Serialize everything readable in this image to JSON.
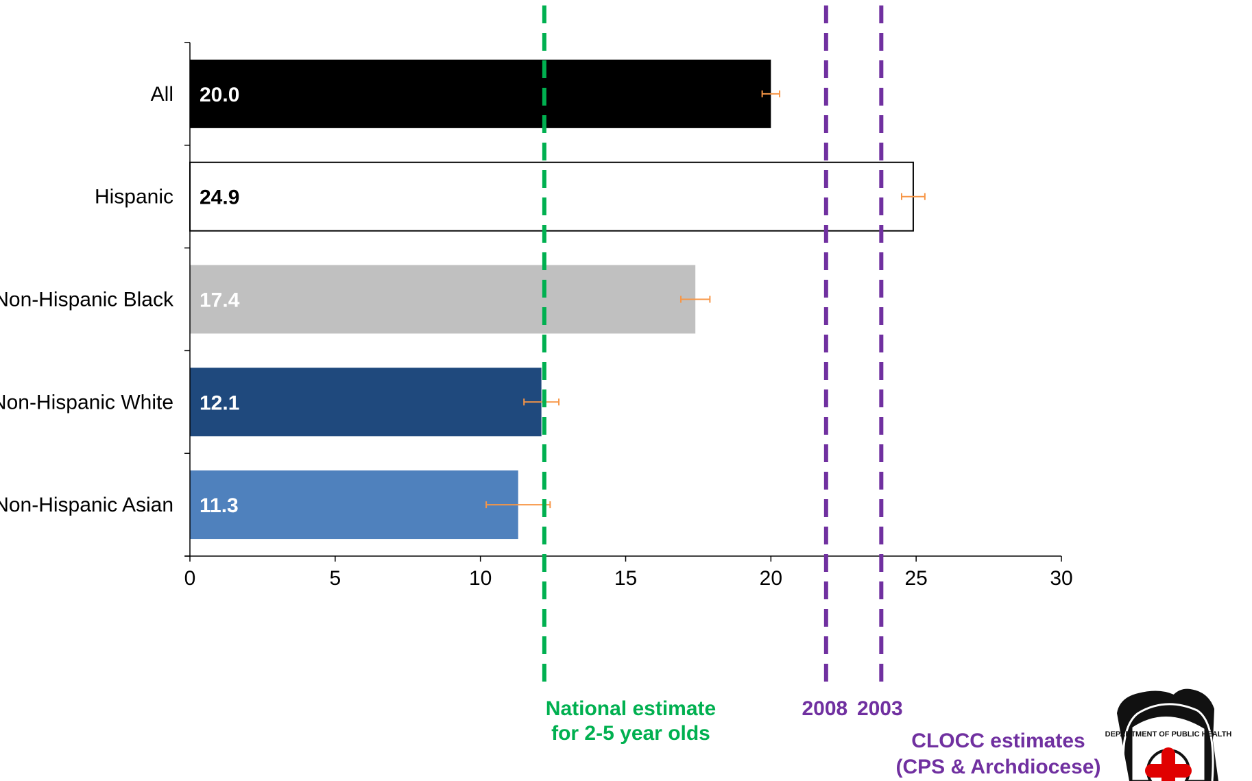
{
  "chart_data": {
    "type": "bar",
    "orientation": "horizontal",
    "categories": [
      "All",
      "Hispanic",
      "Non-Hispanic Black",
      "Non-Hispanic White",
      "Non-Hispanic Asian"
    ],
    "values": [
      20.0,
      24.9,
      17.4,
      12.1,
      11.3
    ],
    "value_labels": [
      "20.0",
      "24.9",
      "17.4",
      "12.1",
      "11.3"
    ],
    "error_bars": [
      [
        19.7,
        20.3
      ],
      [
        24.5,
        25.3
      ],
      [
        16.9,
        17.9
      ],
      [
        11.5,
        12.7
      ],
      [
        10.2,
        12.4
      ]
    ],
    "bar_colors": [
      "#000000",
      "#ffffff",
      "#c0c0c0",
      "#1f497d",
      "#4f81bd"
    ],
    "value_label_colors": [
      "#ffffff",
      "#000000",
      "#ffffff",
      "#ffffff",
      "#ffffff"
    ],
    "error_bar_color": "#f79646",
    "xlim": [
      0,
      30
    ],
    "xticks": [
      "0",
      "5",
      "10",
      "15",
      "20",
      "25",
      "30"
    ],
    "grid": false,
    "reference_lines": [
      {
        "x": 12.2,
        "color": "#00b050",
        "style": "dashed"
      },
      {
        "x": 21.9,
        "color": "#7030a0",
        "style": "dashed",
        "label": "2008"
      },
      {
        "x": 23.8,
        "color": "#7030a0",
        "style": "dashed",
        "label": "2003"
      }
    ],
    "annotations": {
      "national_line1": "National estimate",
      "national_line2": "for 2-5 year olds",
      "clocc_line1": "CLOCC estimates",
      "clocc_line2": "(CPS & Archdiocese)"
    },
    "annotation_colors": {
      "national": "#00b050",
      "clocc": "#7030a0"
    }
  },
  "logo": {
    "text": "DEPARTMENT OF PUBLIC HEALTH",
    "icon": "health-department-seal"
  }
}
